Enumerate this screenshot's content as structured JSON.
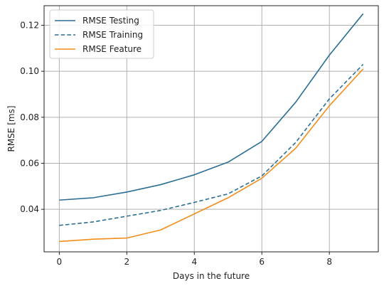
{
  "chart_data": {
    "type": "line",
    "xlabel": "Days in the future",
    "ylabel": "RMSE [ms]",
    "x": [
      0,
      1,
      2,
      3,
      4,
      5,
      6,
      7,
      8,
      9
    ],
    "xlim": [
      -0.45,
      9.45
    ],
    "ylim": [
      0.0215,
      0.1285
    ],
    "x_ticks": [
      0,
      2,
      4,
      6,
      8
    ],
    "x_tick_labels": [
      "0",
      "2",
      "4",
      "6",
      "8"
    ],
    "y_ticks": [
      0.04,
      0.06,
      0.08,
      0.1,
      0.12
    ],
    "y_tick_labels": [
      "0.04",
      "0.06",
      "0.08",
      "0.10",
      "0.12"
    ],
    "grid": true,
    "legend_position": "top-left",
    "series": [
      {
        "name": "RMSE Testing",
        "color": "#2b6f94",
        "dash": "solid",
        "values": [
          0.044,
          0.045,
          0.0475,
          0.0507,
          0.055,
          0.0605,
          0.0695,
          0.0865,
          0.107,
          0.125
        ]
      },
      {
        "name": "RMSE Training",
        "color": "#2b6f94",
        "dash": "dashed",
        "values": [
          0.033,
          0.0345,
          0.037,
          0.0395,
          0.043,
          0.0467,
          0.0545,
          0.069,
          0.088,
          0.103
        ]
      },
      {
        "name": "RMSE Feature",
        "color": "#f28e1c",
        "dash": "solid",
        "values": [
          0.026,
          0.027,
          0.0275,
          0.031,
          0.038,
          0.045,
          0.0535,
          0.0665,
          0.085,
          0.101
        ]
      }
    ]
  }
}
